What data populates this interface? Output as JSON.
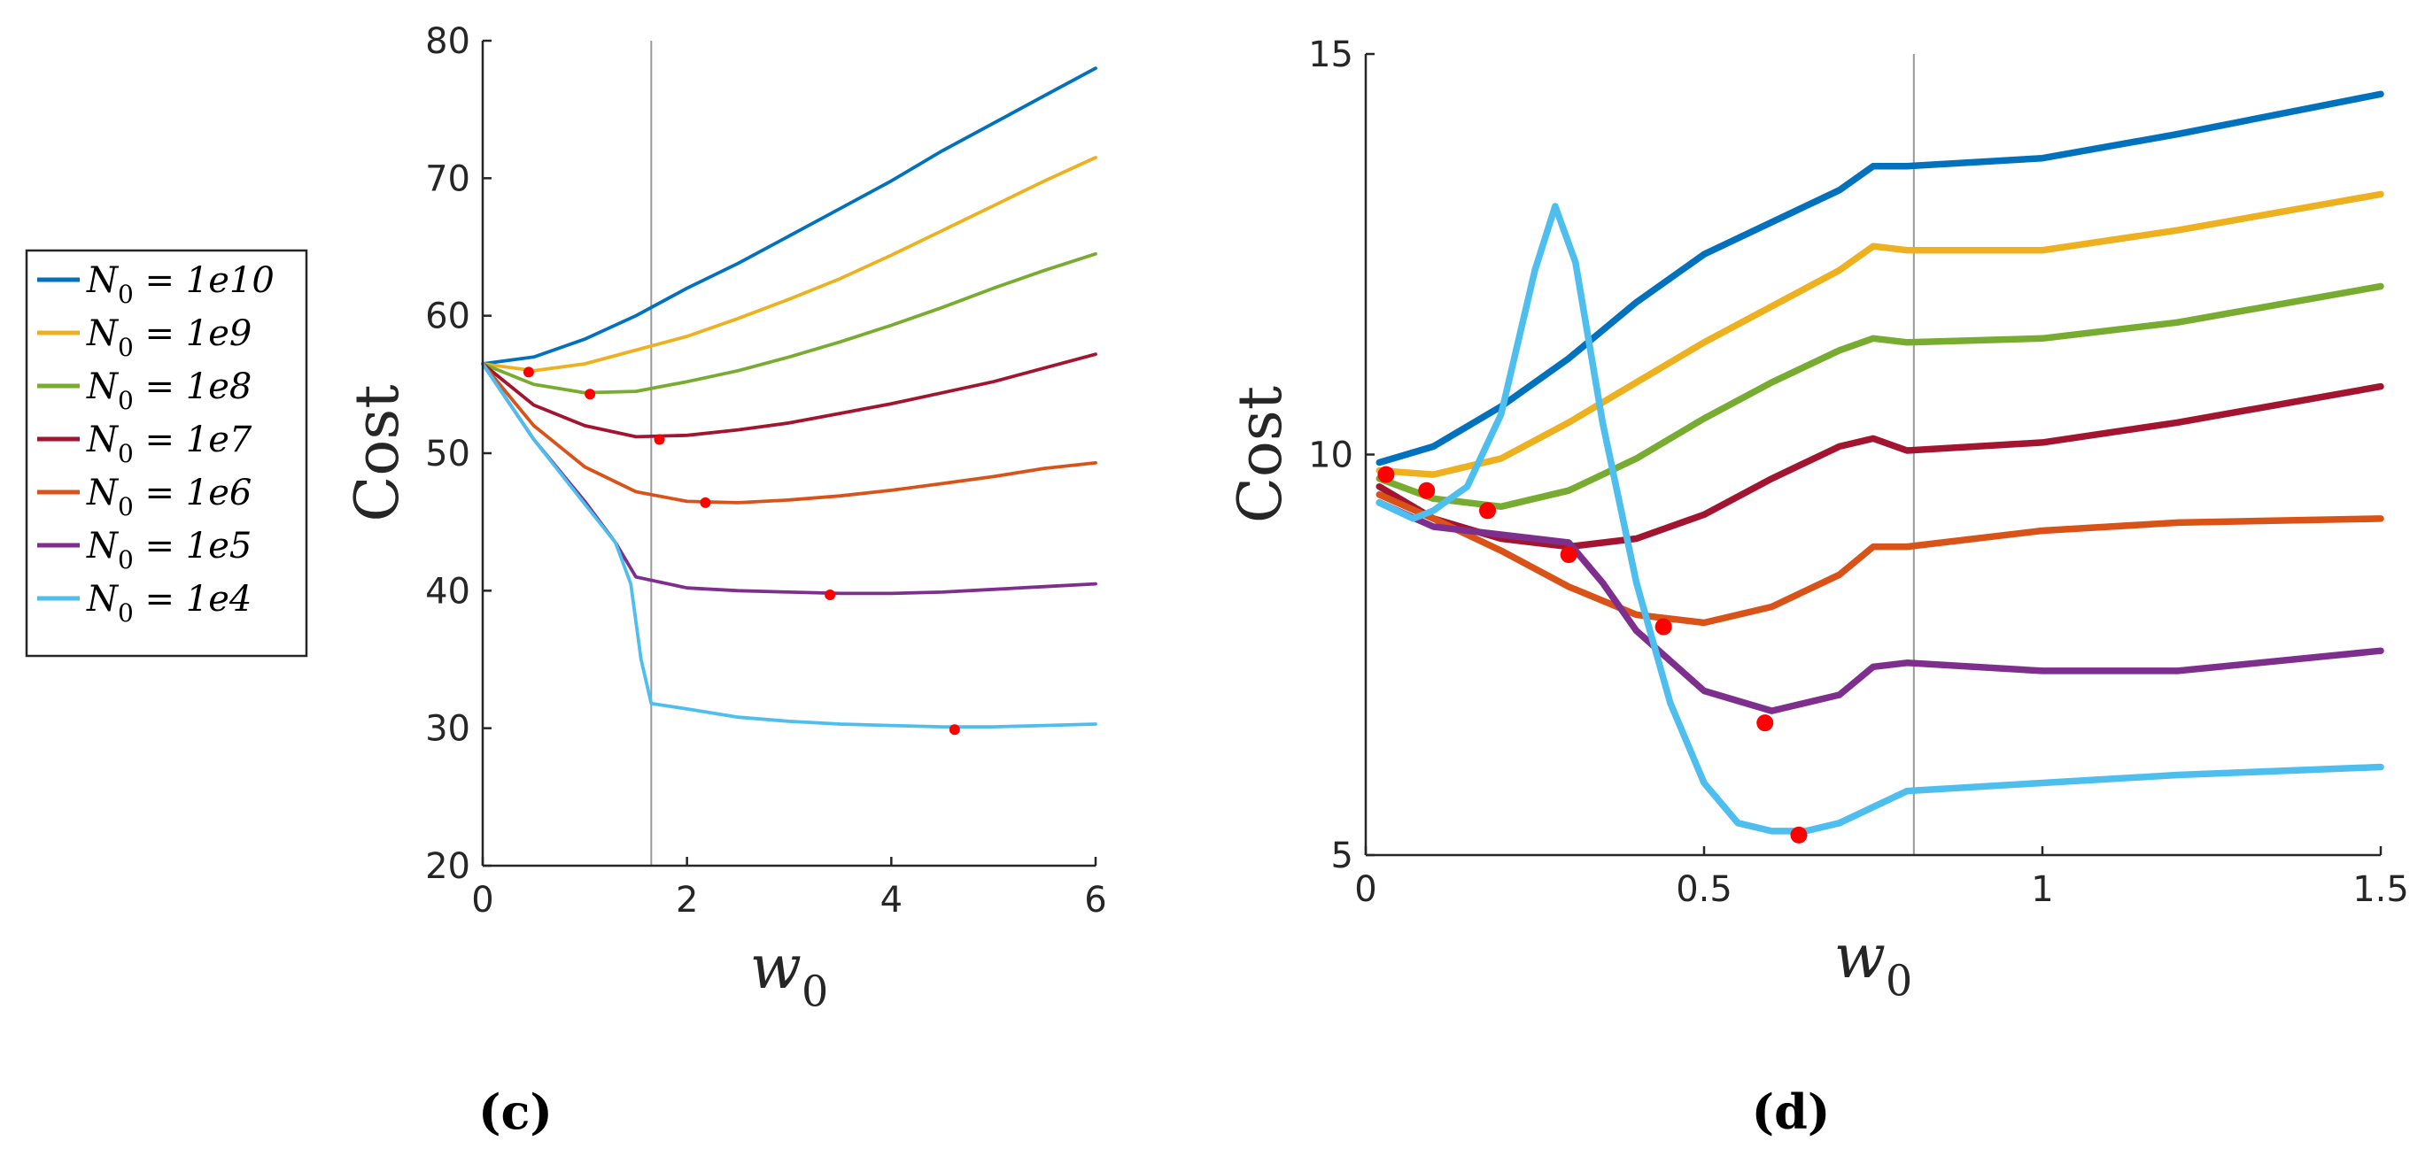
{
  "legend": [
    {
      "label": "N_0 = 1e10",
      "color": "#0072BD"
    },
    {
      "label": "N_0 = 1e9",
      "color": "#EDB120"
    },
    {
      "label": "N_0 = 1e8",
      "color": "#77AC30"
    },
    {
      "label": "N_0 = 1e7",
      "color": "#A2142F"
    },
    {
      "label": "N_0 = 1e6",
      "color": "#D95319"
    },
    {
      "label": "N_0 = 1e5",
      "color": "#7E2F8E"
    },
    {
      "label": "N_0 = 1e4",
      "color": "#4DBEEE"
    }
  ],
  "minimum_marker_color": "#FF0000",
  "chart_data": [
    {
      "type": "line",
      "panel_label": "(c)",
      "xlabel": "w_0",
      "ylabel": "Cost",
      "xlim": [
        0,
        6
      ],
      "ylim": [
        20,
        80
      ],
      "xticks": [
        0,
        2,
        4,
        6
      ],
      "yticks": [
        20,
        30,
        40,
        50,
        60,
        70,
        80
      ],
      "vertical_line_x": 1.65,
      "series": [
        {
          "name": "N_0 = 1e10",
          "x": [
            0,
            0.5,
            1,
            1.5,
            2,
            2.5,
            3,
            3.5,
            4,
            4.5,
            5,
            5.5,
            6
          ],
          "y": [
            56.5,
            57,
            58.3,
            60,
            62,
            63.8,
            65.8,
            67.8,
            69.8,
            72,
            74,
            76,
            78
          ]
        },
        {
          "name": "N_0 = 1e9",
          "x": [
            0,
            0.5,
            1,
            1.5,
            2,
            2.5,
            3,
            3.5,
            4,
            4.5,
            5,
            5.5,
            6
          ],
          "y": [
            56.5,
            56,
            56.5,
            57.5,
            58.5,
            59.8,
            61.2,
            62.7,
            64.4,
            66.2,
            68,
            69.8,
            71.5
          ]
        },
        {
          "name": "N_0 = 1e8",
          "x": [
            0,
            0.5,
            1,
            1.5,
            2,
            2.5,
            3,
            3.5,
            4,
            4.5,
            5,
            5.5,
            6
          ],
          "y": [
            56.5,
            55,
            54.4,
            54.5,
            55.2,
            56,
            57,
            58.1,
            59.3,
            60.6,
            62,
            63.3,
            64.5
          ]
        },
        {
          "name": "N_0 = 1e7",
          "x": [
            0,
            0.5,
            1,
            1.5,
            2,
            2.5,
            3,
            3.5,
            4,
            4.5,
            5,
            5.5,
            6
          ],
          "y": [
            56.5,
            53.5,
            52,
            51.2,
            51.3,
            51.7,
            52.2,
            52.9,
            53.6,
            54.4,
            55.2,
            56.2,
            57.2
          ]
        },
        {
          "name": "N_0 = 1e6",
          "x": [
            0,
            0.5,
            1,
            1.5,
            2,
            2.5,
            3,
            3.5,
            4,
            4.5,
            5,
            5.5,
            6
          ],
          "y": [
            56.5,
            52,
            49,
            47.2,
            46.5,
            46.4,
            46.6,
            46.9,
            47.3,
            47.8,
            48.3,
            48.9,
            49.3
          ]
        },
        {
          "name": "N_0 = 1e5",
          "x": [
            0,
            0.5,
            1,
            1.3,
            1.5,
            2,
            2.5,
            3,
            3.5,
            4,
            4.5,
            5,
            5.5,
            6
          ],
          "y": [
            56.5,
            51,
            46.5,
            43.5,
            41,
            40.2,
            40,
            39.9,
            39.8,
            39.8,
            39.9,
            40.1,
            40.3,
            40.5
          ]
        },
        {
          "name": "N_0 = 1e4",
          "x": [
            0,
            0.5,
            1,
            1.3,
            1.45,
            1.55,
            1.65,
            2,
            2.5,
            3,
            3.5,
            4,
            4.5,
            5,
            5.5,
            6
          ],
          "y": [
            56.5,
            51,
            46.3,
            43.5,
            40.5,
            35,
            31.8,
            31.4,
            30.8,
            30.5,
            30.3,
            30.2,
            30.1,
            30.1,
            30.2,
            30.3
          ]
        }
      ],
      "minima": [
        {
          "x": 0.45,
          "y": 55.9
        },
        {
          "x": 1.05,
          "y": 54.3
        },
        {
          "x": 1.73,
          "y": 51.0
        },
        {
          "x": 2.18,
          "y": 46.4
        },
        {
          "x": 3.4,
          "y": 39.7
        },
        {
          "x": 4.62,
          "y": 29.9
        }
      ]
    },
    {
      "type": "line",
      "panel_label": "(d)",
      "xlabel": "w_0",
      "ylabel": "Cost",
      "xlim": [
        0,
        1.5
      ],
      "ylim": [
        5,
        15
      ],
      "xticks": [
        0,
        0.5,
        1,
        1.5
      ],
      "yticks": [
        5,
        10,
        15
      ],
      "vertical_line_x": 0.81,
      "series": [
        {
          "name": "N_0 = 1e10",
          "x": [
            0.02,
            0.1,
            0.2,
            0.3,
            0.4,
            0.5,
            0.6,
            0.7,
            0.75,
            0.8,
            1.0,
            1.2,
            1.5
          ],
          "y": [
            9.9,
            10.1,
            10.6,
            11.2,
            11.9,
            12.5,
            12.9,
            13.3,
            13.6,
            13.6,
            13.7,
            14.0,
            14.5
          ]
        },
        {
          "name": "N_0 = 1e9",
          "x": [
            0.02,
            0.1,
            0.2,
            0.3,
            0.4,
            0.5,
            0.6,
            0.7,
            0.75,
            0.8,
            1.0,
            1.2,
            1.5
          ],
          "y": [
            9.8,
            9.75,
            9.95,
            10.4,
            10.9,
            11.4,
            11.85,
            12.3,
            12.6,
            12.55,
            12.55,
            12.8,
            13.25
          ]
        },
        {
          "name": "N_0 = 1e8",
          "x": [
            0.02,
            0.1,
            0.2,
            0.3,
            0.4,
            0.5,
            0.6,
            0.7,
            0.75,
            0.8,
            1.0,
            1.2,
            1.5
          ],
          "y": [
            9.7,
            9.45,
            9.35,
            9.55,
            9.95,
            10.45,
            10.9,
            11.3,
            11.45,
            11.4,
            11.45,
            11.65,
            12.1
          ]
        },
        {
          "name": "N_0 = 1e7",
          "x": [
            0.02,
            0.1,
            0.2,
            0.3,
            0.4,
            0.5,
            0.6,
            0.7,
            0.75,
            0.8,
            1.0,
            1.2,
            1.5
          ],
          "y": [
            9.6,
            9.2,
            8.95,
            8.85,
            8.95,
            9.25,
            9.7,
            10.1,
            10.2,
            10.05,
            10.15,
            10.4,
            10.85
          ]
        },
        {
          "name": "N_0 = 1e6",
          "x": [
            0.02,
            0.1,
            0.2,
            0.3,
            0.4,
            0.5,
            0.6,
            0.7,
            0.75,
            0.8,
            1.0,
            1.2,
            1.5
          ],
          "y": [
            9.5,
            9.2,
            8.8,
            8.35,
            8.0,
            7.9,
            8.1,
            8.5,
            8.85,
            8.85,
            9.05,
            9.15,
            9.2
          ]
        },
        {
          "name": "N_0 = 1e5",
          "x": [
            0.02,
            0.1,
            0.2,
            0.3,
            0.35,
            0.4,
            0.5,
            0.6,
            0.7,
            0.75,
            0.8,
            1.0,
            1.2,
            1.5
          ],
          "y": [
            9.4,
            9.1,
            9.0,
            8.9,
            8.4,
            7.8,
            7.05,
            6.8,
            7.0,
            7.35,
            7.4,
            7.3,
            7.3,
            7.55
          ]
        },
        {
          "name": "N_0 = 1e4",
          "x": [
            0.02,
            0.07,
            0.1,
            0.15,
            0.2,
            0.25,
            0.28,
            0.31,
            0.35,
            0.4,
            0.45,
            0.5,
            0.55,
            0.6,
            0.65,
            0.7,
            0.75,
            0.8,
            1.0,
            1.2,
            1.5
          ],
          "y": [
            9.4,
            9.2,
            9.3,
            9.6,
            10.5,
            12.3,
            13.1,
            12.4,
            10.4,
            8.4,
            6.9,
            5.9,
            5.4,
            5.3,
            5.3,
            5.4,
            5.6,
            5.8,
            5.9,
            6.0,
            6.1
          ]
        }
      ],
      "minima": [
        {
          "x": 0.03,
          "y": 9.75
        },
        {
          "x": 0.09,
          "y": 9.55
        },
        {
          "x": 0.18,
          "y": 9.3
        },
        {
          "x": 0.3,
          "y": 8.75
        },
        {
          "x": 0.44,
          "y": 7.85
        },
        {
          "x": 0.59,
          "y": 6.65
        },
        {
          "x": 0.64,
          "y": 5.25
        }
      ]
    }
  ]
}
